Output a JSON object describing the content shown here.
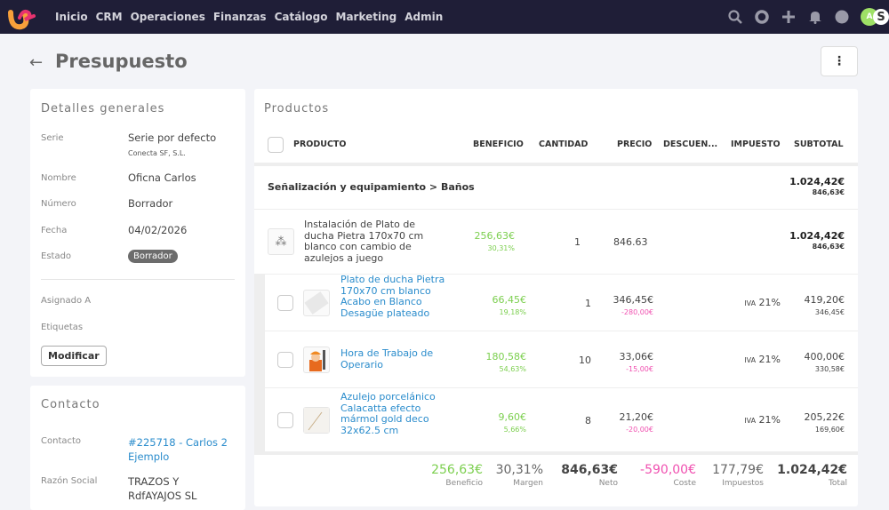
{
  "nav": {
    "items": [
      "Inicio",
      "CRM",
      "Operaciones",
      "Finanzas",
      "Catálogo",
      "Marketing",
      "Admin"
    ],
    "avatar": "A",
    "avatar2": "S"
  },
  "page": {
    "title": "Presupuesto",
    "more": "⋮"
  },
  "details": {
    "title": "Detalles generales",
    "serie_label": "Serie",
    "serie": "Serie por defecto",
    "company": "Conecta SF, S.L.",
    "nombre_label": "Nombre",
    "nombre": "Oficna Carlos",
    "numero_label": "Número",
    "numero": "Borrador",
    "fecha_label": "Fecha",
    "fecha": "04/02/2026",
    "estado_label": "Estado",
    "estado": "Borrador",
    "asignado_label": "Asignado A",
    "etiquetas_label": "Etiquetas",
    "modify": "Modificar"
  },
  "contact": {
    "title": "Contacto",
    "contacto_label": "Contacto",
    "contacto": "#225718 - Carlos 2 Ejemplo",
    "razon_label": "Razón Social",
    "razon": "TRAZOS Y RdfAYAJOS SL"
  },
  "products": {
    "title": "Productos",
    "headers": [
      "PRODUCTO",
      "BENEFICIO",
      "CANTIDAD",
      "PRECIO",
      "DESCUEN...",
      "IMPUESTO",
      "SUBTOTAL"
    ],
    "group": {
      "name": "Señalización y equipamiento > Baños",
      "total": "1.024,42€",
      "net": "846,63€"
    },
    "parent": {
      "name": "Instalación de Plato de ducha Pietra 170x70 cm blanco con cambio de azulejos a juego",
      "benefit": "256,63€",
      "margin": "30,31%",
      "qty": "1",
      "price": "846.63",
      "total": "1.024,42€",
      "net": "846,63€"
    },
    "items": [
      {
        "name": "Plato de ducha Pietra 170x70 cm blanco Acabo en Blanco Desagüe plateado",
        "benefit": "66,45€",
        "margin": "19,18%",
        "qty": "1",
        "price": "346,45€",
        "cost": "-280,00€",
        "tax_label": "IVA",
        "tax": "21%",
        "total": "419,20€",
        "net": "346,45€"
      },
      {
        "name": "Hora de Trabajo de Operario",
        "benefit": "180,58€",
        "margin": "54,63%",
        "qty": "10",
        "price": "33,06€",
        "cost": "-15,00€",
        "tax_label": "IVA",
        "tax": "21%",
        "total": "400,00€",
        "net": "330,58€"
      },
      {
        "name": "Azulejo porcelánico Calacatta efecto mármol gold deco 32x62.5 cm",
        "benefit": "9,60€",
        "margin": "5,66%",
        "qty": "8",
        "price": "21,20€",
        "cost": "-20,00€",
        "tax_label": "IVA",
        "tax": "21%",
        "total": "205,22€",
        "net": "169,60€"
      }
    ]
  },
  "totals": [
    {
      "value": "256,63€",
      "label": "Beneficio"
    },
    {
      "value": "30,31%",
      "label": "Margen"
    },
    {
      "value": "846,63€",
      "label": "Neto"
    },
    {
      "value": "-590,00€",
      "label": "Coste"
    },
    {
      "value": "177,79€",
      "label": "Impuestos"
    },
    {
      "value": "1.024,42€",
      "label": "Total"
    }
  ]
}
